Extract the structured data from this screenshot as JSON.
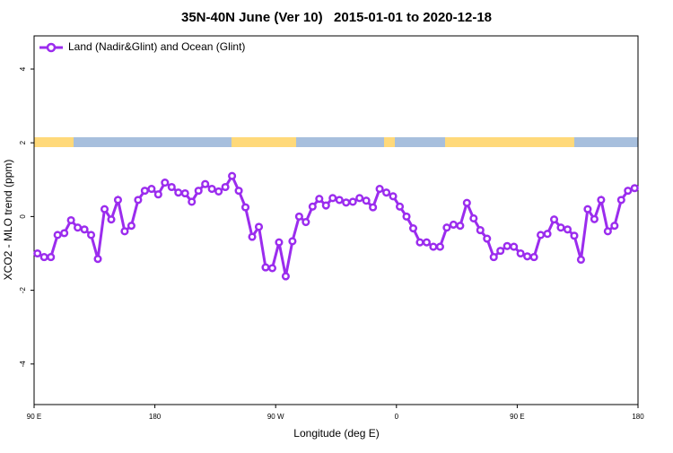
{
  "chart_data": {
    "type": "line",
    "title": "35N-40N June (Ver 10)   2015-01-01 to 2020-12-18",
    "x_label": "Longitude (deg E)",
    "y_label": "XCO2 - MLO trend (ppm)",
    "legend": "top-left",
    "xlim": [
      90,
      540
    ],
    "xticks": [
      {
        "value": 90,
        "label": "90 E"
      },
      180,
      {
        "value": 270,
        "label": "90 W"
      },
      {
        "value": 360,
        "label": "0"
      },
      {
        "value": 450,
        "label": "90 E"
      },
      {
        "value": 540,
        "label": "180"
      }
    ],
    "ylim": [
      -5.1,
      4.9
    ],
    "yticks": [
      -4,
      -2,
      0,
      2,
      4
    ],
    "x": [
      92.5,
      97.5,
      102.5,
      107.5,
      112.5,
      117.5,
      122.5,
      127.5,
      132.5,
      137.5,
      142.5,
      147.5,
      152.5,
      157.5,
      162.5,
      167.5,
      172.5,
      177.5,
      182.5,
      187.5,
      192.5,
      197.5,
      202.5,
      207.5,
      212.5,
      217.5,
      222.5,
      227.5,
      232.5,
      237.5,
      242.5,
      247.5,
      252.5,
      257.5,
      262.5,
      267.5,
      272.5,
      277.5,
      282.5,
      287.5,
      292.5,
      297.5,
      302.5,
      307.5,
      312.5,
      317.5,
      322.5,
      327.5,
      332.5,
      337.5,
      342.5,
      347.5,
      352.5,
      357.5,
      362.5,
      367.5,
      372.5,
      377.5,
      382.5,
      387.5,
      392.5,
      397.5,
      402.5,
      407.5,
      412.5,
      417.5,
      422.5,
      427.5,
      432.5,
      437.5,
      442.5,
      447.5,
      452.5,
      457.5,
      462.5,
      467.5,
      472.5,
      477.5,
      482.5,
      487.5,
      492.5,
      497.5,
      502.5,
      507.5,
      512.5,
      517.5,
      522.5,
      527.5,
      532.5,
      537.5
    ],
    "series": [
      {
        "name": "Land (Nadir&Glint) and Ocean (Glint)",
        "color": "#9b2cee",
        "values": [
          -1.0,
          -1.1,
          -1.1,
          -0.5,
          -0.45,
          -0.1,
          -0.3,
          -0.35,
          -0.5,
          -1.15,
          0.2,
          -0.08,
          0.45,
          -0.4,
          -0.25,
          0.45,
          0.7,
          0.75,
          0.6,
          0.92,
          0.8,
          0.65,
          0.63,
          0.4,
          0.7,
          0.88,
          0.75,
          0.68,
          0.8,
          1.1,
          0.7,
          0.25,
          -0.55,
          -0.28,
          -1.38,
          -1.4,
          -0.7,
          -1.62,
          -0.67,
          0,
          -0.15,
          0.27,
          0.48,
          0.3,
          0.5,
          0.45,
          0.38,
          0.4,
          0.5,
          0.43,
          0.25,
          0.75,
          0.65,
          0.55,
          0.27,
          0,
          -0.32,
          -0.7,
          -0.7,
          -0.82,
          -0.82,
          -0.3,
          -0.22,
          -0.25,
          0.37,
          -0.05,
          -0.37,
          -0.6,
          -1.1,
          -0.93,
          -0.8,
          -0.82,
          -1.0,
          -1.08,
          -1.1,
          -0.5,
          -0.47,
          -0.08,
          -0.3,
          -0.35,
          -0.52,
          -1.17,
          0.2,
          -0.07,
          0.45,
          -0.4,
          -0.25,
          0.45,
          0.7,
          0.77
        ]
      }
    ]
  }
}
